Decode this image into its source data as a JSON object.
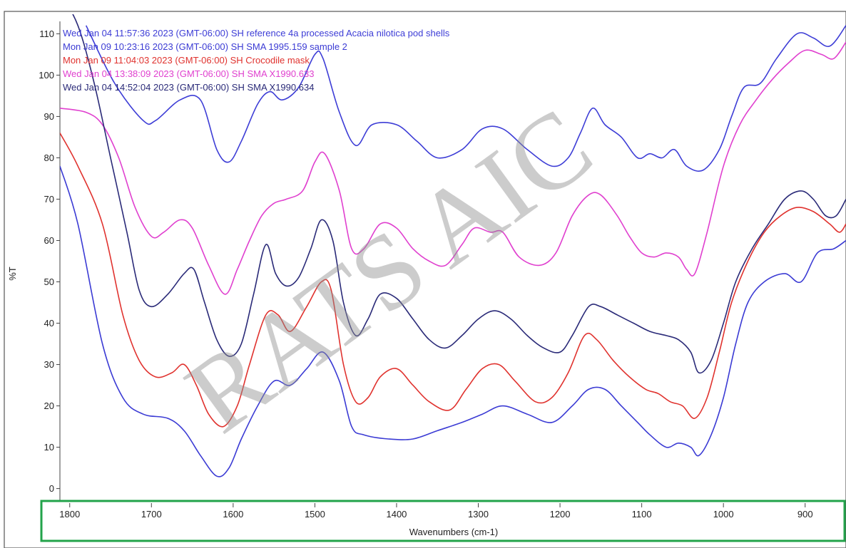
{
  "chart_data": {
    "type": "line",
    "title": "",
    "xlabel": "Wavenumbers (cm-1)",
    "ylabel": "%T",
    "xlim": [
      1812,
      850
    ],
    "ylim": [
      -3,
      113
    ],
    "x_ticks": [
      1800,
      1700,
      1600,
      1500,
      1400,
      1300,
      1200,
      1100,
      1000,
      900
    ],
    "y_ticks": [
      0,
      10,
      20,
      30,
      40,
      50,
      60,
      70,
      80,
      90,
      100,
      110
    ],
    "grid": false,
    "legend_position": "top-left",
    "watermark": "RATS AIC",
    "series": [
      {
        "name": "Wed Jan 04 11:57:36 2023 (GMT-06:00) SH reference 4a processed Acacia nilotica pod shells",
        "color": "#3d3dd6",
        "points": [
          [
            1780,
            112
          ],
          [
            1745,
            98
          ],
          [
            1710,
            89
          ],
          [
            1695,
            89
          ],
          [
            1665,
            94
          ],
          [
            1640,
            94
          ],
          [
            1620,
            82
          ],
          [
            1605,
            79
          ],
          [
            1590,
            84
          ],
          [
            1570,
            93
          ],
          [
            1555,
            96
          ],
          [
            1540,
            94
          ],
          [
            1520,
            97
          ],
          [
            1500,
            105
          ],
          [
            1490,
            104
          ],
          [
            1470,
            91
          ],
          [
            1450,
            83
          ],
          [
            1430,
            88
          ],
          [
            1400,
            88
          ],
          [
            1375,
            84
          ],
          [
            1350,
            80
          ],
          [
            1320,
            82
          ],
          [
            1295,
            87
          ],
          [
            1270,
            87
          ],
          [
            1240,
            82
          ],
          [
            1210,
            78
          ],
          [
            1190,
            80
          ],
          [
            1175,
            86
          ],
          [
            1160,
            92
          ],
          [
            1145,
            88
          ],
          [
            1125,
            85
          ],
          [
            1105,
            80
          ],
          [
            1090,
            81
          ],
          [
            1075,
            80
          ],
          [
            1060,
            82
          ],
          [
            1045,
            78
          ],
          [
            1025,
            77
          ],
          [
            1005,
            82
          ],
          [
            990,
            90
          ],
          [
            975,
            97
          ],
          [
            955,
            98
          ],
          [
            935,
            104
          ],
          [
            910,
            110
          ],
          [
            890,
            109
          ],
          [
            870,
            107
          ],
          [
            850,
            112
          ]
        ]
      },
      {
        "name": "Mon Jan 09 10:23:16 2023 (GMT-06:00) SH SMA 1995.159 sample 2",
        "color": "#3b3bd4",
        "points": [
          [
            1812,
            78
          ],
          [
            1790,
            64
          ],
          [
            1760,
            35
          ],
          [
            1735,
            22
          ],
          [
            1710,
            18
          ],
          [
            1680,
            17
          ],
          [
            1660,
            14
          ],
          [
            1640,
            8
          ],
          [
            1620,
            3
          ],
          [
            1605,
            5
          ],
          [
            1590,
            12
          ],
          [
            1570,
            20
          ],
          [
            1550,
            26
          ],
          [
            1530,
            25
          ],
          [
            1510,
            29
          ],
          [
            1490,
            33
          ],
          [
            1470,
            26
          ],
          [
            1455,
            15
          ],
          [
            1440,
            13
          ],
          [
            1410,
            12
          ],
          [
            1380,
            12
          ],
          [
            1350,
            14
          ],
          [
            1320,
            16
          ],
          [
            1295,
            18
          ],
          [
            1270,
            20
          ],
          [
            1240,
            18
          ],
          [
            1210,
            16
          ],
          [
            1185,
            20
          ],
          [
            1165,
            24
          ],
          [
            1145,
            24
          ],
          [
            1125,
            20
          ],
          [
            1105,
            16
          ],
          [
            1090,
            13
          ],
          [
            1070,
            10
          ],
          [
            1055,
            11
          ],
          [
            1040,
            10
          ],
          [
            1030,
            8
          ],
          [
            1015,
            13
          ],
          [
            1000,
            22
          ],
          [
            985,
            35
          ],
          [
            970,
            45
          ],
          [
            950,
            50
          ],
          [
            925,
            52
          ],
          [
            905,
            50
          ],
          [
            885,
            57
          ],
          [
            865,
            58
          ],
          [
            850,
            60
          ]
        ]
      },
      {
        "name": "Mon Jan 09 11:04:03 2023 (GMT-06:00) SH Crocodile mask",
        "color": "#e0322e",
        "points": [
          [
            1812,
            86
          ],
          [
            1790,
            78
          ],
          [
            1760,
            64
          ],
          [
            1735,
            42
          ],
          [
            1715,
            31
          ],
          [
            1695,
            27
          ],
          [
            1675,
            28
          ],
          [
            1660,
            30
          ],
          [
            1645,
            25
          ],
          [
            1630,
            18
          ],
          [
            1612,
            15
          ],
          [
            1595,
            20
          ],
          [
            1580,
            30
          ],
          [
            1560,
            42
          ],
          [
            1545,
            42
          ],
          [
            1530,
            38
          ],
          [
            1510,
            44
          ],
          [
            1492,
            50
          ],
          [
            1480,
            48
          ],
          [
            1465,
            30
          ],
          [
            1450,
            21
          ],
          [
            1435,
            22
          ],
          [
            1420,
            27
          ],
          [
            1400,
            29
          ],
          [
            1380,
            25
          ],
          [
            1360,
            21
          ],
          [
            1335,
            19
          ],
          [
            1315,
            24
          ],
          [
            1295,
            29
          ],
          [
            1275,
            30
          ],
          [
            1255,
            26
          ],
          [
            1230,
            21
          ],
          [
            1210,
            22
          ],
          [
            1190,
            28
          ],
          [
            1170,
            37
          ],
          [
            1155,
            36
          ],
          [
            1135,
            31
          ],
          [
            1115,
            27
          ],
          [
            1095,
            24
          ],
          [
            1080,
            23
          ],
          [
            1065,
            21
          ],
          [
            1050,
            20
          ],
          [
            1035,
            17
          ],
          [
            1020,
            22
          ],
          [
            1005,
            33
          ],
          [
            990,
            45
          ],
          [
            970,
            55
          ],
          [
            950,
            62
          ],
          [
            930,
            66
          ],
          [
            910,
            68
          ],
          [
            890,
            67
          ],
          [
            870,
            64
          ],
          [
            858,
            62
          ],
          [
            850,
            64
          ]
        ]
      },
      {
        "name": "Wed Jan 04 13:38:09 2023 (GMT-06:00) SH SMA X1990.633",
        "color": "#e040cf",
        "points": [
          [
            1812,
            92
          ],
          [
            1780,
            91
          ],
          [
            1760,
            88
          ],
          [
            1740,
            80
          ],
          [
            1720,
            68
          ],
          [
            1700,
            61
          ],
          [
            1685,
            62
          ],
          [
            1665,
            65
          ],
          [
            1650,
            63
          ],
          [
            1630,
            54
          ],
          [
            1610,
            47
          ],
          [
            1595,
            53
          ],
          [
            1580,
            60
          ],
          [
            1565,
            66
          ],
          [
            1550,
            69
          ],
          [
            1535,
            70
          ],
          [
            1515,
            72
          ],
          [
            1500,
            79
          ],
          [
            1488,
            81
          ],
          [
            1470,
            72
          ],
          [
            1455,
            58
          ],
          [
            1440,
            58
          ],
          [
            1420,
            64
          ],
          [
            1400,
            63
          ],
          [
            1380,
            58
          ],
          [
            1360,
            55
          ],
          [
            1340,
            54
          ],
          [
            1320,
            59
          ],
          [
            1305,
            63
          ],
          [
            1285,
            62
          ],
          [
            1270,
            62
          ],
          [
            1250,
            56
          ],
          [
            1225,
            54
          ],
          [
            1205,
            57
          ],
          [
            1185,
            66
          ],
          [
            1165,
            71
          ],
          [
            1150,
            71
          ],
          [
            1130,
            66
          ],
          [
            1115,
            61
          ],
          [
            1100,
            57
          ],
          [
            1085,
            56
          ],
          [
            1070,
            57
          ],
          [
            1055,
            56
          ],
          [
            1045,
            53
          ],
          [
            1035,
            52
          ],
          [
            1020,
            62
          ],
          [
            1000,
            78
          ],
          [
            980,
            88
          ],
          [
            960,
            94
          ],
          [
            940,
            99
          ],
          [
            920,
            103
          ],
          [
            900,
            106
          ],
          [
            880,
            105
          ],
          [
            865,
            104
          ],
          [
            850,
            108
          ]
        ]
      },
      {
        "name": "Wed Jan 04 14:52:04 2023 (GMT-06:00) SH SMA X1990.634",
        "color": "#2a2a78",
        "points": [
          [
            1812,
            120
          ],
          [
            1790,
            112
          ],
          [
            1770,
            98
          ],
          [
            1750,
            80
          ],
          [
            1730,
            62
          ],
          [
            1715,
            48
          ],
          [
            1700,
            44
          ],
          [
            1680,
            47
          ],
          [
            1660,
            52
          ],
          [
            1648,
            53
          ],
          [
            1635,
            45
          ],
          [
            1620,
            36
          ],
          [
            1605,
            32
          ],
          [
            1590,
            35
          ],
          [
            1575,
            47
          ],
          [
            1560,
            59
          ],
          [
            1548,
            52
          ],
          [
            1535,
            49
          ],
          [
            1520,
            51
          ],
          [
            1505,
            58
          ],
          [
            1492,
            65
          ],
          [
            1478,
            60
          ],
          [
            1465,
            45
          ],
          [
            1450,
            37
          ],
          [
            1435,
            41
          ],
          [
            1420,
            47
          ],
          [
            1400,
            46
          ],
          [
            1380,
            41
          ],
          [
            1360,
            36
          ],
          [
            1340,
            34
          ],
          [
            1320,
            37
          ],
          [
            1300,
            41
          ],
          [
            1280,
            43
          ],
          [
            1260,
            41
          ],
          [
            1240,
            37
          ],
          [
            1220,
            34
          ],
          [
            1200,
            33
          ],
          [
            1185,
            37
          ],
          [
            1165,
            44
          ],
          [
            1150,
            44
          ],
          [
            1130,
            42
          ],
          [
            1110,
            40
          ],
          [
            1090,
            38
          ],
          [
            1070,
            37
          ],
          [
            1055,
            36
          ],
          [
            1040,
            33
          ],
          [
            1030,
            28
          ],
          [
            1015,
            31
          ],
          [
            1000,
            40
          ],
          [
            985,
            50
          ],
          [
            965,
            58
          ],
          [
            945,
            64
          ],
          [
            925,
            70
          ],
          [
            905,
            72
          ],
          [
            890,
            70
          ],
          [
            875,
            66
          ],
          [
            862,
            66
          ],
          [
            850,
            70
          ]
        ]
      }
    ]
  }
}
